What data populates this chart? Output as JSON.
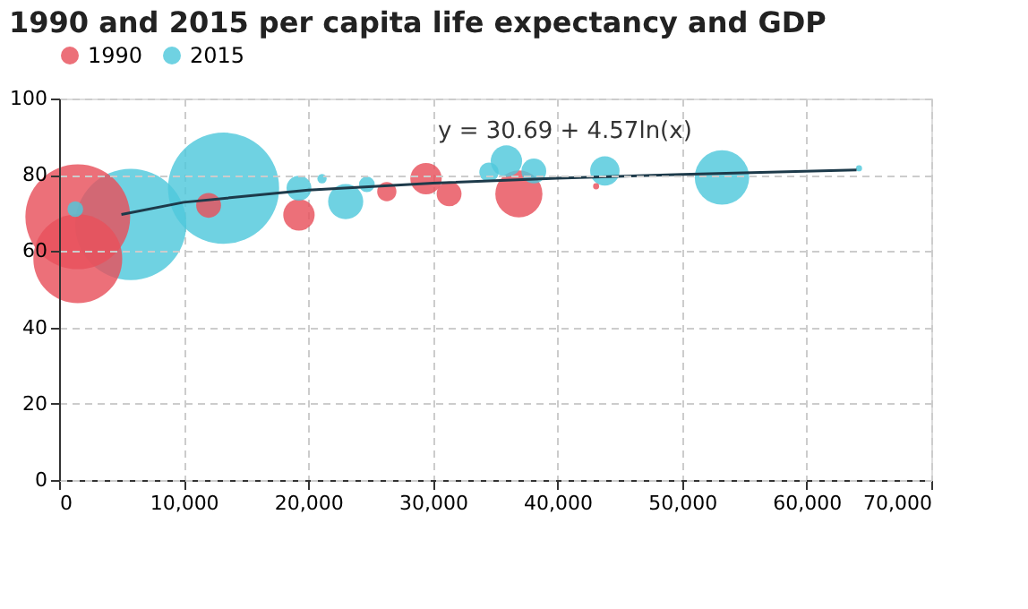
{
  "chart_data": {
    "type": "bubble",
    "title": "1990 and 2015 per capita life expectancy and GDP",
    "xlim": [
      0,
      70000
    ],
    "xticks": [
      0,
      {
        "value": 10000,
        "label": "10,000"
      },
      {
        "value": 20000,
        "label": "20,000"
      },
      {
        "value": 30000,
        "label": "30,000"
      },
      {
        "value": 40000,
        "label": "40,000"
      },
      {
        "value": 50000,
        "label": "50,000"
      },
      {
        "value": 60000,
        "label": "60,000"
      },
      {
        "value": 70000,
        "label": "70,000"
      }
    ],
    "ylim": [
      0,
      100
    ],
    "yticks": [
      0,
      20,
      40,
      60,
      80,
      100
    ],
    "grid": true,
    "legend": "top",
    "marker": "circle",
    "annotations": [
      "y = 30.69 + 4.57ln(x)"
    ],
    "series": [
      {
        "name": "1990",
        "color": "#e8505b",
        "x": [
          1500,
          1500,
          12000,
          19250,
          26300,
          29450,
          31300,
          36900,
          43100
        ],
        "values": [
          69,
          58,
          72,
          69.5,
          75.6,
          79,
          75,
          75,
          77
        ],
        "sizes": [
          0.89,
          0.64,
          0.05,
          0.08,
          0.03,
          0.08,
          0.05,
          0.18,
          0.003
        ]
      },
      {
        "name": "2015",
        "color": "#4fc8dc",
        "x": [
          1300,
          5750,
          13200,
          19250,
          21100,
          23000,
          24700,
          34500,
          35900,
          38100,
          43800,
          53200,
          64200
        ],
        "values": [
          71,
          67,
          76.5,
          76.5,
          79,
          73,
          77.5,
          80.7,
          83.6,
          81,
          81,
          79.3,
          81.7
        ],
        "sizes": [
          0.02,
          1,
          1,
          0.05,
          0.007,
          0.1,
          0.02,
          0.03,
          0.08,
          0.05,
          0.07,
          0.24,
          0.003
        ]
      },
      {
        "type": "line",
        "color": "#1d3a4a",
        "line_style": "solid",
        "marker": "none",
        "x": [
          5000,
          10000,
          20000,
          30000,
          40000,
          50000,
          64000
        ],
        "values": [
          69.6,
          72.8,
          76.0,
          77.8,
          79.1,
          80.1,
          81.3
        ]
      }
    ]
  }
}
